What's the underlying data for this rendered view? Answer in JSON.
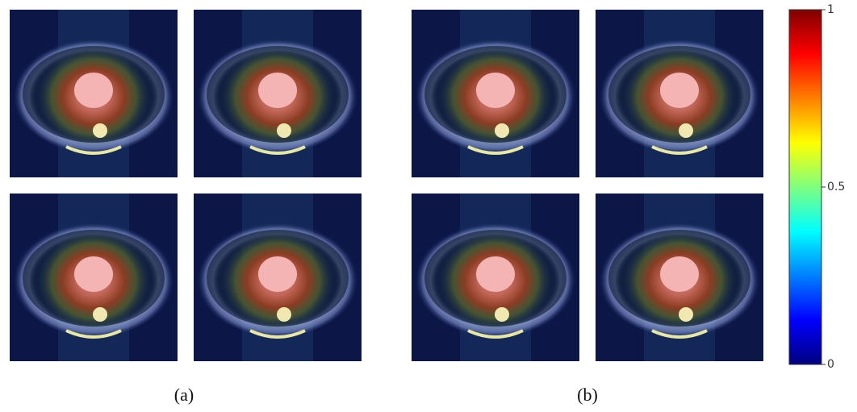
{
  "figure": {
    "panels": [
      {
        "label": "(a)"
      },
      {
        "label": "(b)"
      }
    ],
    "colorbar": {
      "range": [
        0,
        1
      ],
      "ticks": [
        0,
        0.5,
        1
      ]
    }
  }
}
